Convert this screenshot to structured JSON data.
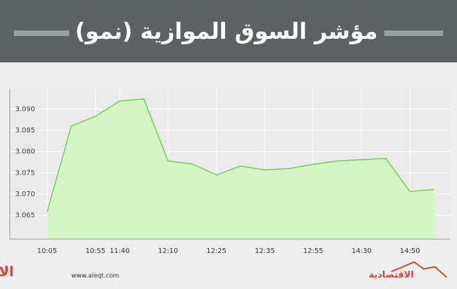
{
  "chart_data": {
    "type": "area",
    "title": "مؤشر السوق الموازية (نمو)",
    "categories": [
      "10:05",
      null,
      "10:55",
      "11:40",
      null,
      "12:10",
      null,
      "12:25",
      null,
      "12:35",
      null,
      "12:55",
      null,
      "14:30",
      null,
      "14:50",
      null
    ],
    "values": [
      3.0658,
      3.086,
      3.0883,
      3.0919,
      3.0924,
      3.0778,
      3.0771,
      3.0745,
      3.0766,
      3.0757,
      3.076,
      3.077,
      3.0778,
      3.0781,
      3.0784,
      3.0706,
      3.0711
    ],
    "color": "#6fd14f",
    "fill": "#d3f4c3",
    "ylim": [
      3.0594,
      3.0948
    ],
    "yticks": [
      {
        "value": 3.065,
        "label": "3.065"
      },
      {
        "value": 3.07,
        "label": "3.070"
      },
      {
        "value": 3.075,
        "label": "3.075"
      },
      {
        "value": 3.08,
        "label": "3.080"
      },
      {
        "value": 3.085,
        "label": "3.085"
      },
      {
        "value": 3.09,
        "label": "3.090"
      }
    ],
    "grid": true
  },
  "footer": {
    "brand": "الاقتصادية",
    "url": "www.aleqt.com",
    "brand_right": "الاقتصادية"
  }
}
